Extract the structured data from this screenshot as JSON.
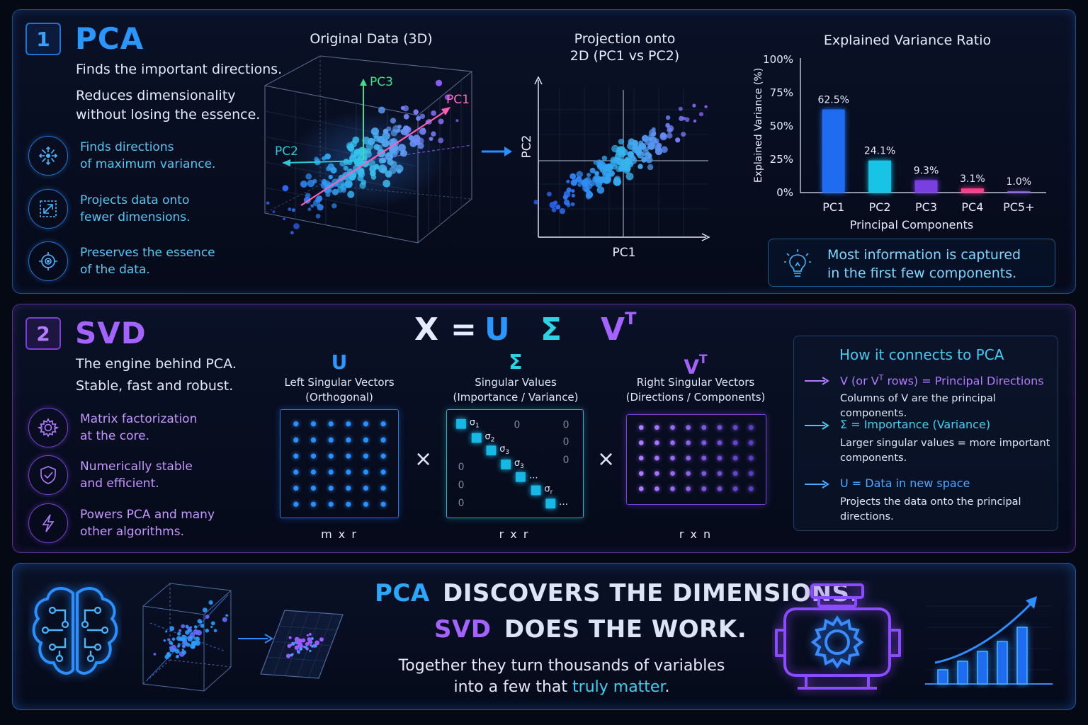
{
  "pca": {
    "number": "1",
    "title": "PCA",
    "tagline": "Finds the important directions.",
    "description_line1": "Reduces dimensionality",
    "description_line2": "without losing the essence.",
    "features": [
      {
        "icon": "arrows-outward-icon",
        "line1": "Finds directions",
        "line2": "of maximum variance."
      },
      {
        "icon": "projection-icon",
        "line1": "Projects data onto",
        "line2": "fewer dimensions."
      },
      {
        "icon": "target-icon",
        "line1": "Preserves the essence",
        "line2": "of the data."
      }
    ],
    "original_title": "Original Data (3D)",
    "axis_pc1": "PC1",
    "axis_pc2": "PC2",
    "axis_pc3": "PC3",
    "projection_title_line1": "Projection onto",
    "projection_title_line2": "2D (PC1 vs PC2)",
    "projection_xlabel": "PC1",
    "projection_ylabel": "PC2",
    "insight_line1": "Most information is captured",
    "insight_line2": "in the first few components."
  },
  "chart_data": {
    "type": "bar",
    "title": "Explained Variance Ratio",
    "xlabel": "Principal Components",
    "ylabel": "Explained Variance (%)",
    "categories": [
      "PC1",
      "PC2",
      "PC3",
      "PC4",
      "PC5+"
    ],
    "values": [
      62.5,
      24.1,
      9.3,
      3.1,
      1.0
    ],
    "value_labels": [
      "62.5%",
      "24.1%",
      "9.3%",
      "3.1%",
      "1.0%"
    ],
    "yticks": [
      "0%",
      "25%",
      "50%",
      "75%",
      "100%"
    ],
    "ylim": [
      0,
      100
    ],
    "colors": [
      "#1f6cf0",
      "#18c4e6",
      "#7a3fe0",
      "#ff3d8a",
      "#8a5cf0"
    ],
    "grid": false
  },
  "svd": {
    "number": "2",
    "title": "SVD",
    "tagline_line1": "The engine behind PCA.",
    "tagline_line2": "Stable, fast and robust.",
    "features": [
      {
        "icon": "gear-icon",
        "line1": "Matrix factorization",
        "line2": "at the core."
      },
      {
        "icon": "shield-check-icon",
        "line1": "Numerically stable",
        "line2": "and efficient."
      },
      {
        "icon": "lightning-icon",
        "line1": "Powers PCA and many",
        "line2": "other algorithms."
      }
    ],
    "formula": {
      "x": "X",
      "eq": "=",
      "u": "U",
      "sigma": "Σ",
      "v": "V",
      "t": "T"
    },
    "u": {
      "symbol": "U",
      "label_line1": "Left Singular Vectors",
      "label_line2": "(Orthogonal)",
      "dims": "m x r"
    },
    "sigma": {
      "symbol": "Σ",
      "label_line1": "Singular Values",
      "label_line2": "(Importance / Variance)",
      "dims": "r x r",
      "diag_labels": [
        "σ",
        "σ",
        "σ",
        "σ",
        "…",
        "σ",
        "…"
      ],
      "diag_subs": [
        "1",
        "2",
        "3",
        "3",
        "",
        "r",
        ""
      ],
      "zero": "0"
    },
    "v": {
      "symbol": "V",
      "sup": "T",
      "label_line1": "Right Singular Vectors",
      "label_line2": "(Directions / Components)",
      "dims": "r x n"
    },
    "times": "×",
    "connect": {
      "title": "How it connects to PCA",
      "items": [
        {
          "head_a": "V (or V",
          "head_sup": "T",
          "head_b": " rows) = Principal Directions",
          "sub": "Columns of V are the principal components.",
          "color": "#b37cff"
        },
        {
          "head_a": "Σ = Importance (Variance)",
          "head_sup": "",
          "head_b": "",
          "sub": "Larger singular values = more important components.",
          "color": "#3fd0f0"
        },
        {
          "head_a": "U = Data in new space",
          "head_sup": "",
          "head_b": "",
          "sub": "Projects the data onto the principal directions.",
          "color": "#4aa8ff"
        }
      ]
    }
  },
  "summary": {
    "line1_a": "PCA",
    "line1_b": "DISCOVERS THE DIMENSIONS.",
    "line2_a": "SVD",
    "line2_b": "DOES THE WORK.",
    "sub_line1": "Together they turn thousands of variables",
    "sub_line2_a": "into a few that ",
    "sub_line2_b": "truly matter",
    "sub_line2_c": ".",
    "icons": [
      "brain-circuit-icon",
      "cube-projection-icon",
      "engine-gear-icon",
      "growth-chart-icon"
    ]
  }
}
